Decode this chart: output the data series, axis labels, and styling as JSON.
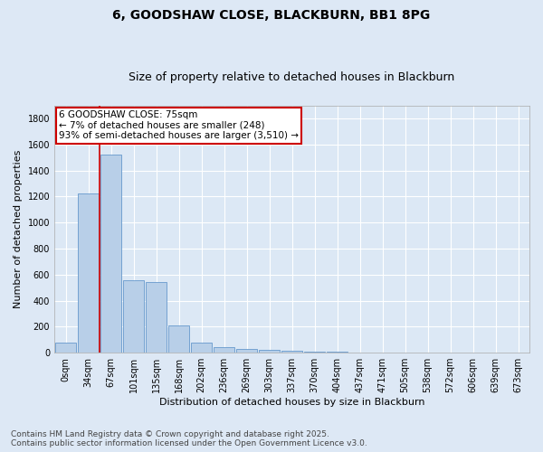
{
  "title": "6, GOODSHAW CLOSE, BLACKBURN, BB1 8PG",
  "subtitle": "Size of property relative to detached houses in Blackburn",
  "xlabel": "Distribution of detached houses by size in Blackburn",
  "ylabel": "Number of detached properties",
  "bar_labels": [
    "0sqm",
    "34sqm",
    "67sqm",
    "101sqm",
    "135sqm",
    "168sqm",
    "202sqm",
    "236sqm",
    "269sqm",
    "303sqm",
    "337sqm",
    "370sqm",
    "404sqm",
    "437sqm",
    "471sqm",
    "505sqm",
    "538sqm",
    "572sqm",
    "606sqm",
    "639sqm",
    "673sqm"
  ],
  "bar_values": [
    80,
    1225,
    1525,
    560,
    540,
    210,
    80,
    45,
    28,
    20,
    15,
    10,
    5,
    2,
    0,
    0,
    0,
    0,
    0,
    0,
    0
  ],
  "bar_color": "#b8cfe8",
  "bar_edge_color": "#6699cc",
  "vline_x": 1.5,
  "vline_color": "#cc0000",
  "annotation_text": "6 GOODSHAW CLOSE: 75sqm\n← 7% of detached houses are smaller (248)\n93% of semi-detached houses are larger (3,510) →",
  "annotation_box_color": "#ffffff",
  "annotation_box_edge": "#cc0000",
  "ylim": [
    0,
    1900
  ],
  "yticks": [
    0,
    200,
    400,
    600,
    800,
    1000,
    1200,
    1400,
    1600,
    1800
  ],
  "footer": "Contains HM Land Registry data © Crown copyright and database right 2025.\nContains public sector information licensed under the Open Government Licence v3.0.",
  "background_color": "#dde8f5",
  "plot_background": "#dce8f5",
  "grid_color": "#ffffff",
  "title_fontsize": 10,
  "subtitle_fontsize": 9,
  "axis_label_fontsize": 8,
  "tick_fontsize": 7,
  "footer_fontsize": 6.5
}
